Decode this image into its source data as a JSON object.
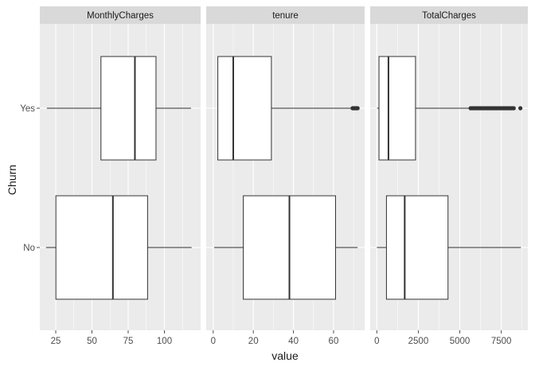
{
  "chart_data": {
    "type": "boxplot",
    "facet_variable": "variable",
    "xlabel": "value",
    "ylabel": "Churn",
    "categories": [
      "No",
      "Yes"
    ],
    "colors": {
      "panel_background": "#ebebeb",
      "grid_major": "#ffffff",
      "strip_background": "#d9d9d9",
      "box_fill": "#ffffff",
      "box_line": "#333333",
      "outlier": "#333333",
      "text": "#1a1a1a",
      "tick_text": "#4d4d4d"
    },
    "panels": [
      {
        "name": "MonthlyCharges",
        "xlim": [
          14,
          125
        ],
        "ticks": [
          25,
          50,
          75,
          100
        ],
        "tick_labels": [
          "25",
          "50",
          "75",
          "100"
        ],
        "boxes": [
          {
            "category": "Yes",
            "min": 18.85,
            "q1": 56.2,
            "median": 79.65,
            "q3": 94.2,
            "max": 118.35,
            "outliers": []
          },
          {
            "category": "No",
            "min": 18.25,
            "q1": 25.1,
            "median": 64.45,
            "q3": 88.4,
            "max": 118.75,
            "outliers": []
          }
        ]
      },
      {
        "name": "tenure",
        "xlim": [
          -3.5,
          75.5
        ],
        "ticks": [
          0,
          20,
          40,
          60
        ],
        "tick_labels": [
          "0",
          "20",
          "40",
          "60"
        ],
        "boxes": [
          {
            "category": "Yes",
            "min": 2.3,
            "q1": 2.3,
            "median": 10,
            "q3": 29,
            "max": 69,
            "outliers": [
              69.5,
              70,
              70.5,
              71,
              71.5,
              72
            ]
          },
          {
            "category": "No",
            "min": 0.5,
            "q1": 15,
            "median": 38,
            "q3": 61,
            "max": 72,
            "outliers": []
          }
        ]
      },
      {
        "name": "TotalCharges",
        "xlim": [
          -400,
          9100
        ],
        "ticks": [
          0,
          2500,
          5000,
          7500
        ],
        "tick_labels": [
          "0",
          "2500",
          "5000",
          "7500"
        ],
        "boxes": [
          {
            "category": "Yes",
            "min": 19,
            "q1": 130,
            "median": 700,
            "q3": 2330,
            "max": 5600,
            "outliers": [
              5650,
              5750,
              5850,
              5950,
              6050,
              6150,
              6250,
              6350,
              6450,
              6550,
              6650,
              6750,
              6850,
              6950,
              7050,
              7150,
              7250,
              7350,
              7450,
              7550,
              7650,
              7750,
              7850,
              7950,
              8050,
              8150,
              8250,
              8650
            ]
          },
          {
            "category": "No",
            "min": 0,
            "q1": 580,
            "median": 1680,
            "q3": 4290,
            "max": 8680,
            "outliers": []
          }
        ]
      }
    ]
  }
}
